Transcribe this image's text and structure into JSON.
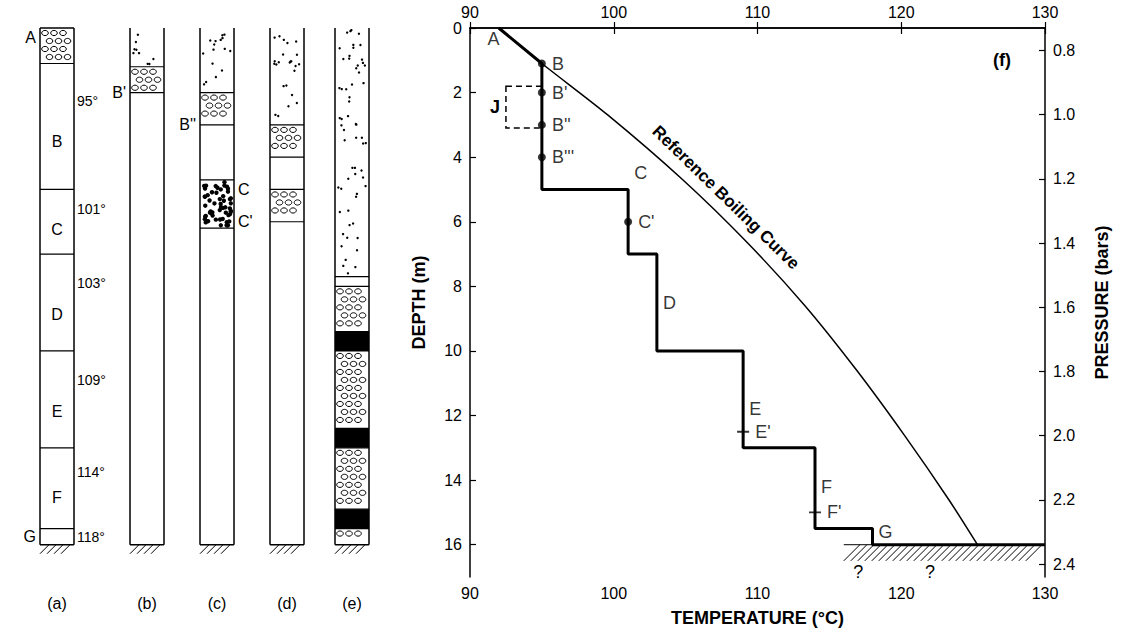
{
  "chart_data": {
    "type": "line",
    "x_label": "TEMPERATURE (°C)",
    "y_label": "DEPTH (m)",
    "y2_label": "PRESSURE (bars)",
    "xlim": [
      90,
      130
    ],
    "xticks": [
      90,
      100,
      110,
      120,
      130
    ],
    "ylim": [
      0,
      17
    ],
    "yticks": [
      0,
      2,
      4,
      6,
      8,
      10,
      12,
      14,
      16
    ],
    "y2lim": [
      0.73,
      2.44
    ],
    "y2ticks": [
      0.8,
      {
        "value": 1,
        "label": "1.0"
      },
      1.2,
      1.4,
      1.6,
      1.8,
      {
        "value": 2,
        "label": "2.0"
      },
      2.2,
      2.4
    ],
    "grid": false,
    "series": [
      {
        "type": "line",
        "color": "#000000",
        "line_style": "bold",
        "x": [
          92,
          95,
          95,
          101,
          101,
          103,
          103,
          109,
          109,
          114,
          114,
          118,
          118,
          130
        ],
        "values": [
          0,
          1.1,
          5,
          5,
          7,
          7,
          10,
          10,
          13,
          13,
          15.5,
          15.5,
          16,
          16
        ]
      },
      {
        "type": "line",
        "color": "#000000",
        "line_style": "solid",
        "x": [
          92,
          95,
          99.6,
          104.8,
          109.3,
          113.3,
          116.9,
          120.2,
          123.3,
          125.3
        ],
        "values": [
          0,
          1.1,
          2.7,
          4.7,
          6.65,
          8.6,
          10.6,
          12.6,
          14.6,
          16
        ]
      },
      {
        "type": "scatter",
        "color": "#000000",
        "marker": "circle",
        "x": [
          95,
          95,
          95,
          95,
          101
        ],
        "values": [
          1.1,
          2,
          3,
          4,
          6
        ],
        "point_labels": [
          "B",
          "B'",
          "B''",
          "B'''",
          "C'"
        ]
      },
      {
        "type": "scatter",
        "color": "#000000",
        "marker": "cross",
        "x": [
          109,
          114
        ],
        "values": [
          12.5,
          15
        ],
        "point_labels": [
          "E'",
          "F'"
        ]
      },
      {
        "type": "scatter",
        "color": "#000000",
        "marker": "none",
        "x": [
          90.8,
          101,
          103,
          109,
          114,
          118
        ],
        "values": [
          0.35,
          4.5,
          8.5,
          11.8,
          14.2,
          15.6
        ],
        "point_labels": [
          "A",
          "C",
          "D",
          "E",
          "F",
          "G"
        ]
      }
    ],
    "annotations": [
      {
        "text": "Reference Boiling Curve",
        "x": 107.8,
        "y": 5.25
      },
      {
        "text": "(f)",
        "x": 127,
        "y": 1
      },
      {
        "text": "?",
        "x": 117,
        "y": 16.85
      },
      {
        "text": "?",
        "x": 122,
        "y": 16.85
      }
    ],
    "box": {
      "label": "J",
      "x": [
        92.5,
        95
      ],
      "y": [
        1.8,
        3.1
      ],
      "line_style": "dashed"
    },
    "hatched_floor": {
      "x": [
        116,
        130
      ],
      "y": [
        16,
        16.5
      ]
    }
  },
  "columns": [
    {
      "label": "(a)",
      "layers": [
        {
          "fill": "pebbles",
          "top": 0,
          "bottom": 1.1
        },
        {
          "fill": "blank",
          "top": 1.1,
          "bottom": 5,
          "letter": "B",
          "temp": "95°"
        },
        {
          "fill": "blank",
          "top": 5,
          "bottom": 7,
          "letter": "C",
          "temp": "101°"
        },
        {
          "fill": "blank",
          "top": 7,
          "bottom": 10,
          "letter": "D",
          "temp": "103°"
        },
        {
          "fill": "blank",
          "top": 10,
          "bottom": 13,
          "letter": "E",
          "temp": "109°"
        },
        {
          "fill": "blank",
          "top": 13,
          "bottom": 15.5,
          "letter": "F",
          "temp": "114°"
        },
        {
          "fill": "blank",
          "top": 15.5,
          "bottom": 16,
          "temp": "118°"
        }
      ],
      "side_labels": [
        {
          "text": "A",
          "depth": 0.3,
          "side": "left"
        },
        {
          "text": "G",
          "depth": 15.75,
          "side": "left"
        }
      ]
    },
    {
      "label": "(b)",
      "layers": [
        {
          "fill": "dots",
          "top": 0,
          "bottom": 1.2
        },
        {
          "fill": "pebbles",
          "top": 1.2,
          "bottom": 2
        },
        {
          "fill": "blank",
          "top": 2,
          "bottom": 16
        }
      ],
      "side_labels": [
        {
          "text": "B'",
          "depth": 2,
          "side": "left"
        }
      ]
    },
    {
      "label": "(c)",
      "layers": [
        {
          "fill": "dots",
          "top": 0,
          "bottom": 2
        },
        {
          "fill": "pebbles",
          "top": 2,
          "bottom": 3
        },
        {
          "fill": "blank",
          "top": 3,
          "bottom": 4.7
        },
        {
          "fill": "fine_dots",
          "top": 4.7,
          "bottom": 6.2
        },
        {
          "fill": "blank",
          "top": 6.2,
          "bottom": 16
        }
      ],
      "side_labels": [
        {
          "text": "B''",
          "depth": 3,
          "side": "left"
        },
        {
          "text": "C",
          "depth": 5,
          "side": "right"
        },
        {
          "text": "C'",
          "depth": 6,
          "side": "right"
        }
      ]
    },
    {
      "label": "(d)",
      "layers": [
        {
          "fill": "dots",
          "top": 0,
          "bottom": 3
        },
        {
          "fill": "pebbles",
          "top": 3,
          "bottom": 4
        },
        {
          "fill": "blank",
          "top": 4,
          "bottom": 5
        },
        {
          "fill": "pebbles",
          "top": 5,
          "bottom": 6
        },
        {
          "fill": "blank",
          "top": 6,
          "bottom": 16
        }
      ],
      "side_labels": []
    },
    {
      "label": "(e)",
      "layers": [
        {
          "fill": "dots",
          "top": 0,
          "bottom": 7.7
        },
        {
          "fill": "blank",
          "top": 7.7,
          "bottom": 8
        },
        {
          "fill": "pebbles",
          "top": 8,
          "bottom": 9.4
        },
        {
          "fill": "solid",
          "top": 9.4,
          "bottom": 10
        },
        {
          "fill": "pebbles",
          "top": 10,
          "bottom": 12.4
        },
        {
          "fill": "solid",
          "top": 12.4,
          "bottom": 13
        },
        {
          "fill": "pebbles",
          "top": 13,
          "bottom": 14.9
        },
        {
          "fill": "solid",
          "top": 14.9,
          "bottom": 15.5
        },
        {
          "fill": "pebbles",
          "top": 15.5,
          "bottom": 16
        }
      ],
      "side_labels": []
    }
  ]
}
